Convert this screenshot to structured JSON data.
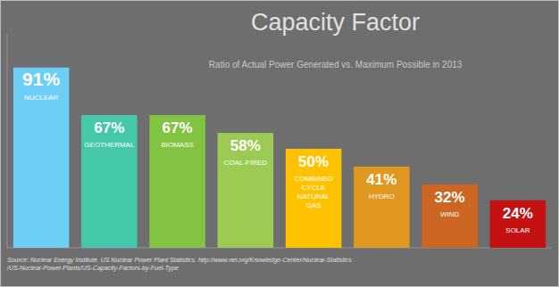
{
  "chart_data": {
    "type": "bar",
    "title": "Capacity Factor",
    "subtitle": "Ratio of Actual Power Generated vs. Maximum Possible in 2013",
    "annotations": [
      "Source: Nuclear Energy Institute. US Nuclear Power Plant Statistics. http://www.nei.org/Knowledge-Center/Nuclear-Statistics\n/US-Nuclear-Power-Plants/US-Capacity-Factors-by-Fuel-Type"
    ],
    "categories": [
      "NUCLEAR",
      "GEOTHERMAL",
      "BIOMASS",
      "COAL-FIRED",
      "COMBINED\nCYCLE\nNATURAL\nGAS",
      "HYDRO",
      "WIND",
      "SOLAR"
    ],
    "values": [
      91,
      67,
      67,
      58,
      50,
      41,
      32,
      24
    ],
    "value_labels": [
      "91%",
      "67%",
      "67%",
      "58%",
      "50%",
      "41%",
      "32%",
      "24%"
    ],
    "colors": [
      "#6DCFF6",
      "#45C8AA",
      "#82C341",
      "#9CCA52",
      "#FFC200",
      "#E09820",
      "#CC6622",
      "#C41111"
    ],
    "ylim": [
      0,
      108
    ],
    "data_labels": true,
    "tick_labels": false,
    "grid": false
  }
}
